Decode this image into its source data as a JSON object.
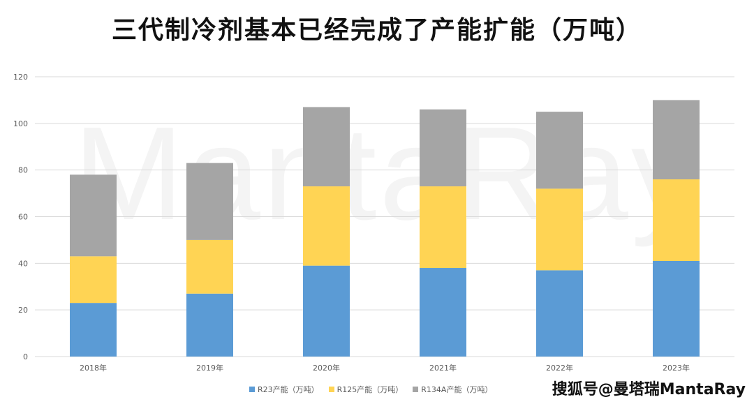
{
  "title": "三代制冷剂基本已经完成了产能扩能（万吨）",
  "watermark": "MantaRay",
  "source_label": "搜狐号@曼塔瑞MantaRay",
  "chart_data": {
    "type": "bar",
    "stacked": true,
    "title": "三代制冷剂基本已经完成了产能扩能（万吨）",
    "xlabel": "",
    "ylabel": "",
    "ylim": [
      0,
      120
    ],
    "yticks": [
      0,
      20,
      40,
      60,
      80,
      100,
      120
    ],
    "grid": true,
    "legend_position": "bottom",
    "categories": [
      "2018年",
      "2019年",
      "2020年",
      "2021年",
      "2022年",
      "2023年"
    ],
    "series": [
      {
        "name": "R23产能（万吨）",
        "color": "#5b9bd5",
        "values": [
          23,
          27,
          39,
          38,
          37,
          41
        ]
      },
      {
        "name": "R125产能（万吨）",
        "color": "#ffd454",
        "values": [
          20,
          23,
          34,
          35,
          35,
          35
        ]
      },
      {
        "name": "R134A产能（万吨）",
        "color": "#a5a5a5",
        "values": [
          35,
          33,
          34,
          33,
          33,
          34
        ]
      }
    ]
  }
}
